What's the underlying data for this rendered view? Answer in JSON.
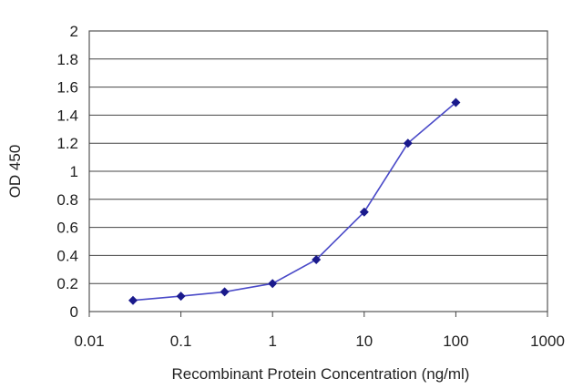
{
  "colors": {
    "series": "#4a4ac8",
    "marker": "#1a1a8c",
    "grid": "#444444",
    "background": "#ffffff"
  },
  "chart_data": {
    "type": "line",
    "title": "",
    "xlabel": "Recombinant Protein Concentration (ng/ml)",
    "ylabel": "OD 450",
    "x_scale": "log",
    "xlim": [
      0.01,
      1000
    ],
    "ylim": [
      0,
      2
    ],
    "x_ticks": [
      0.01,
      0.1,
      1,
      10,
      100,
      1000
    ],
    "x_tick_labels": [
      "0.01",
      "0.1",
      "1",
      "10",
      "100",
      "1000"
    ],
    "y_ticks": [
      0,
      0.2,
      0.4,
      0.6,
      0.8,
      1,
      1.2,
      1.4,
      1.6,
      1.8,
      2
    ],
    "y_tick_labels": [
      "0",
      "0.2",
      "0.4",
      "0.6",
      "0.8",
      "1",
      "1.2",
      "1.4",
      "1.6",
      "1.8",
      "2"
    ],
    "grid": "horizontal",
    "legend": "none",
    "marker": "diamond",
    "series": [
      {
        "x": [
          0.03,
          0.1,
          0.3,
          1,
          3,
          10,
          30,
          100
        ],
        "y": [
          0.08,
          0.11,
          0.14,
          0.2,
          0.37,
          0.71,
          1.2,
          1.49
        ]
      }
    ]
  }
}
